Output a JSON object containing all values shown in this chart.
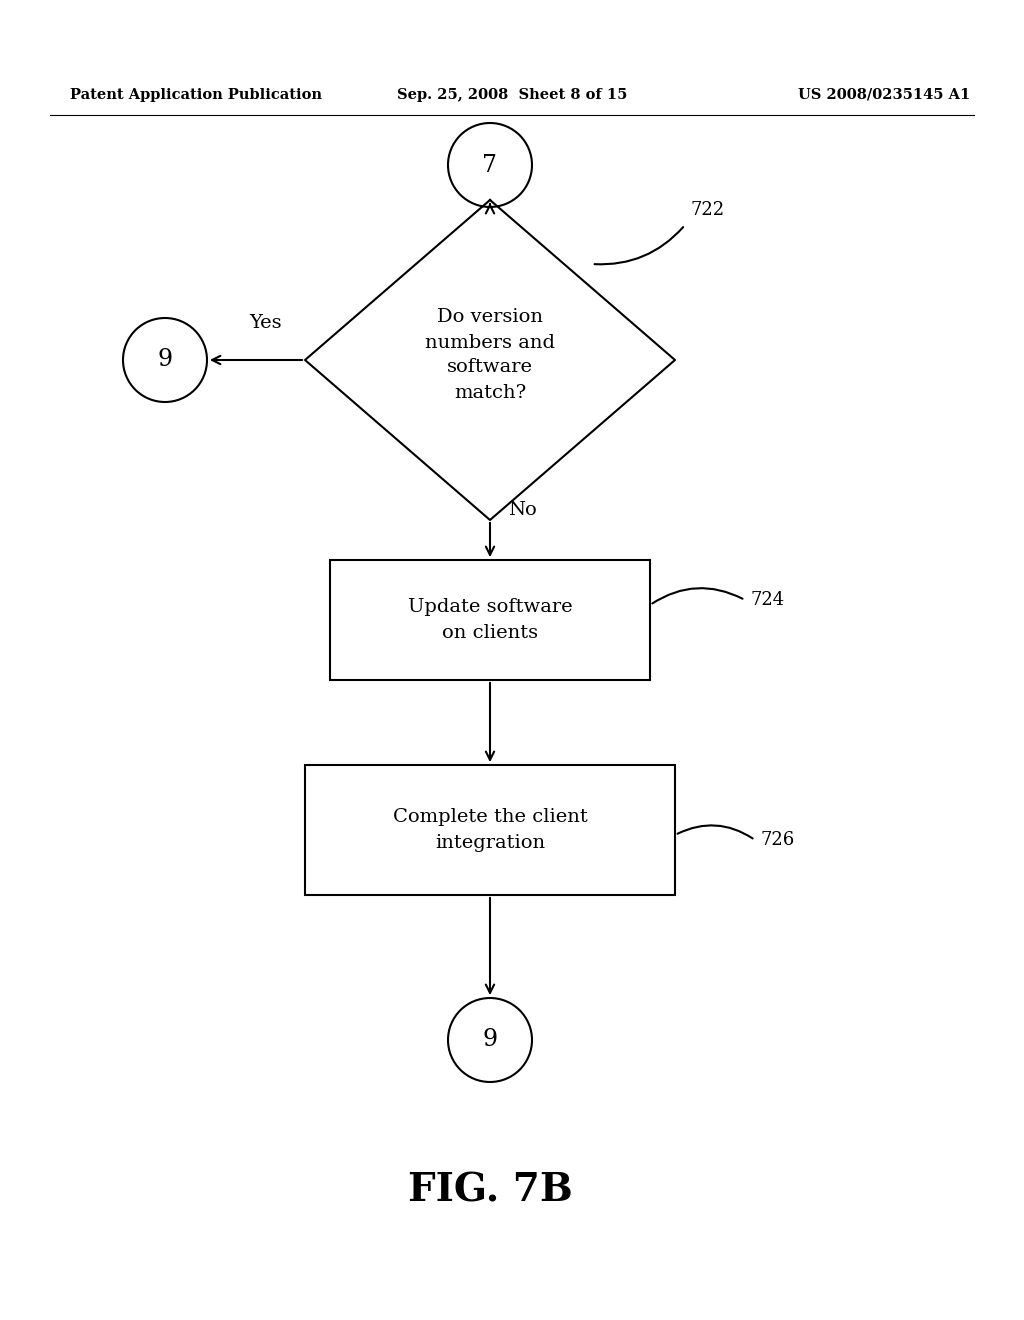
{
  "bg_color": "#ffffff",
  "header_left": "Patent Application Publication",
  "header_center": "Sep. 25, 2008  Sheet 8 of 15",
  "header_right": "US 2008/0235145 A1",
  "fig_label": "FIG. 7B",
  "circle_top_label": "7",
  "circle_bottom_label": "9",
  "circle_left_label": "9",
  "diamond_text": "Do version\nnumbers and\nsoftware\nmatch?",
  "diamond_label": "722",
  "box1_text": "Update software\non clients",
  "box1_label": "724",
  "box2_text": "Complete the client\nintegration",
  "box2_label": "726",
  "yes_label": "Yes",
  "no_label": "No",
  "line_color": "#000000",
  "text_color": "#000000",
  "lw": 1.5,
  "font_size_body": 14,
  "font_size_header": 10.5,
  "font_size_circle": 17,
  "font_size_label": 13,
  "font_size_fig": 28
}
